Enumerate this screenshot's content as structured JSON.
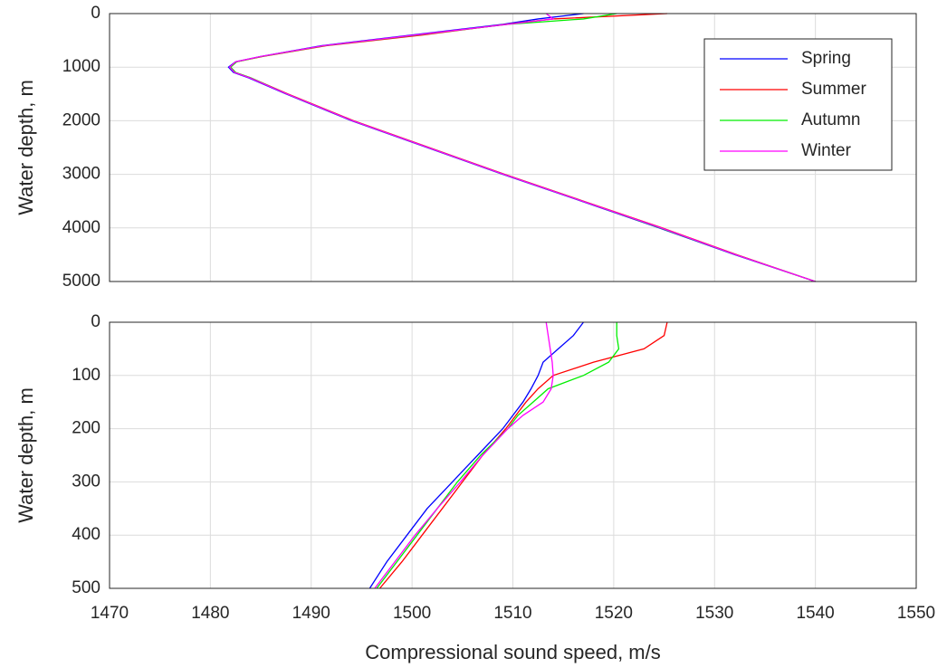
{
  "chart_data": [
    {
      "type": "line",
      "ylabel": "Water depth, m",
      "inverted_y": true,
      "grid": true,
      "legend": "northeast",
      "xticklabels": false,
      "xlim": [
        1470,
        1550
      ],
      "xticks": [
        1470,
        1480,
        1490,
        1500,
        1510,
        1520,
        1530,
        1540,
        1550
      ],
      "ylim": [
        0,
        5000
      ],
      "yticks": [
        0,
        1000,
        2000,
        3000,
        4000,
        5000
      ],
      "y": [
        0,
        100,
        200,
        400,
        600,
        800,
        900,
        1000,
        1100,
        1200,
        1500,
        2000,
        2500,
        3000,
        3500,
        4000,
        4500,
        5000
      ],
      "series": [
        {
          "name": "Spring",
          "color": "#0000ff",
          "values": [
            1517,
            1512.5,
            1509,
            1500,
            1491,
            1485,
            1482.5,
            1481.8,
            1482.3,
            1483.8,
            1487.5,
            1494,
            1501.5,
            1509,
            1516.8,
            1524.5,
            1532,
            1540
          ]
        },
        {
          "name": "Summer",
          "color": "#ff0000",
          "values": [
            1525.3,
            1514,
            1509.3,
            1501,
            1491.5,
            1485.2,
            1482.6,
            1482,
            1482.5,
            1484,
            1487.7,
            1494.2,
            1501.7,
            1509.2,
            1517,
            1524.8,
            1532.2,
            1540
          ]
        },
        {
          "name": "Autumn",
          "color": "#00ee00",
          "values": [
            1520.3,
            1517,
            1509.5,
            1500.5,
            1491.3,
            1485.1,
            1482.6,
            1482,
            1482.5,
            1484,
            1487.6,
            1494.1,
            1501.6,
            1509.1,
            1516.9,
            1524.6,
            1532.1,
            1540
          ]
        },
        {
          "name": "Winter",
          "color": "#ff00ff",
          "values": [
            1513.3,
            1514,
            1509.5,
            1500.3,
            1491.2,
            1485,
            1482.5,
            1481.9,
            1482.4,
            1483.9,
            1487.6,
            1494.1,
            1501.6,
            1509.1,
            1516.9,
            1524.7,
            1532.1,
            1540
          ]
        }
      ]
    },
    {
      "type": "line",
      "ylabel": "Water depth, m",
      "xlabel": "Compressional sound speed, m/s",
      "inverted_y": true,
      "grid": true,
      "xticklabels": true,
      "xlim": [
        1470,
        1550
      ],
      "xticks": [
        1470,
        1480,
        1490,
        1500,
        1510,
        1520,
        1530,
        1540,
        1550
      ],
      "ylim": [
        0,
        500
      ],
      "yticks": [
        0,
        100,
        200,
        300,
        400,
        500
      ],
      "y": [
        0,
        25,
        50,
        75,
        100,
        125,
        150,
        175,
        200,
        250,
        300,
        350,
        400,
        450,
        500
      ],
      "series": [
        {
          "color": "#0000ff",
          "values": [
            1517,
            1516,
            1514.5,
            1513,
            1512.5,
            1511.8,
            1511,
            1510,
            1509,
            1506.5,
            1504,
            1501.5,
            1499.5,
            1497.5,
            1495.8
          ]
        },
        {
          "color": "#ff0000",
          "values": [
            1525.3,
            1525,
            1523,
            1518,
            1514,
            1512.5,
            1511.3,
            1510.3,
            1509.3,
            1507,
            1505,
            1503,
            1501,
            1499,
            1496.8
          ]
        },
        {
          "color": "#00ee00",
          "values": [
            1520.3,
            1520.3,
            1520.5,
            1519.5,
            1517,
            1513.5,
            1512,
            1510.5,
            1509.5,
            1506.8,
            1504.5,
            1502.5,
            1500.5,
            1498.5,
            1496.5
          ]
        },
        {
          "color": "#ff00ff",
          "values": [
            1513.3,
            1513.5,
            1513.7,
            1513.9,
            1514,
            1513.8,
            1513,
            1511,
            1509.5,
            1507,
            1504.8,
            1502.5,
            1500.3,
            1498.3,
            1496.3
          ]
        }
      ]
    }
  ]
}
